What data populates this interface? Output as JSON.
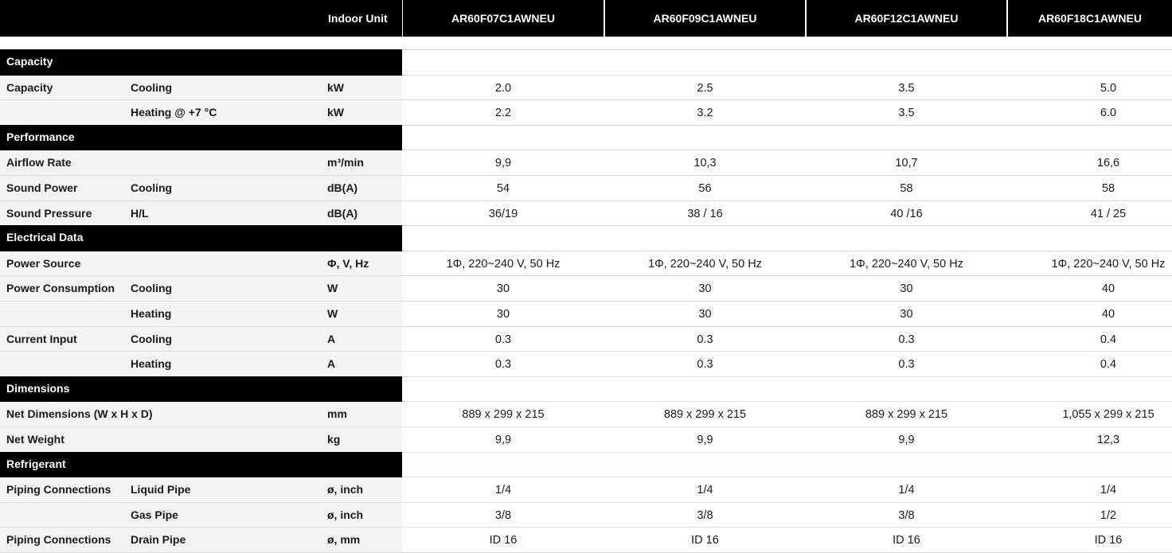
{
  "header": {
    "label": "Indoor Unit",
    "models": [
      "AR60F07C1AWNEU",
      "AR60F09C1AWNEU",
      "AR60F12C1AWNEU",
      "AR60F18C1AWNEU"
    ]
  },
  "rows": [
    {
      "type": "section",
      "title": "Capacity"
    },
    {
      "type": "data",
      "c1": "Capacity",
      "c2": "Cooling",
      "unit": "kW",
      "values": [
        "2.0",
        "2.5",
        "3.5",
        "5.0"
      ]
    },
    {
      "type": "data",
      "c1": "",
      "c2": "Heating @ +7 °C",
      "unit": "kW",
      "values": [
        "2.2",
        "3.2",
        "3.5",
        "6.0"
      ]
    },
    {
      "type": "section",
      "title": "Performance"
    },
    {
      "type": "data",
      "c1": "Airflow Rate",
      "c2": "",
      "unit": "m³/min",
      "values": [
        "9,9",
        "10,3",
        "10,7",
        "16,6"
      ]
    },
    {
      "type": "data",
      "c1": "Sound Power",
      "c2": "Cooling",
      "unit": "dB(A)",
      "values": [
        "54",
        "56",
        "58",
        "58"
      ]
    },
    {
      "type": "data",
      "c1": "Sound Pressure",
      "c2": "H/L",
      "unit": "dB(A)",
      "values": [
        "36/19",
        "38 / 16",
        "40 /16",
        "41 / 25"
      ]
    },
    {
      "type": "section",
      "title": "Electrical Data"
    },
    {
      "type": "data",
      "c1": "Power Source",
      "c2": "",
      "unit": "Φ, V, Hz",
      "values": [
        "1Φ, 220~240 V, 50 Hz",
        "1Φ, 220~240 V, 50 Hz",
        "1Φ, 220~240 V, 50 Hz",
        "1Φ, 220~240 V, 50 Hz"
      ]
    },
    {
      "type": "data",
      "c1": "Power Consumption",
      "c2": "Cooling",
      "unit": "W",
      "values": [
        "30",
        "30",
        "30",
        "40"
      ]
    },
    {
      "type": "data",
      "c1": "",
      "c2": "Heating",
      "unit": "W",
      "values": [
        "30",
        "30",
        "30",
        "40"
      ]
    },
    {
      "type": "data",
      "c1": "Current Input",
      "c2": "Cooling",
      "unit": "A",
      "values": [
        "0.3",
        "0.3",
        "0.3",
        "0.4"
      ]
    },
    {
      "type": "data",
      "c1": "",
      "c2": "Heating",
      "unit": "A",
      "values": [
        "0.3",
        "0.3",
        "0.3",
        "0.4"
      ]
    },
    {
      "type": "section",
      "title": "Dimensions"
    },
    {
      "type": "data",
      "c1": "Net Dimensions (W x H x D)",
      "c2": "",
      "unit": "mm",
      "values": [
        "889 x 299 x 215",
        "889 x 299 x 215",
        "889 x 299 x 215",
        "1,055 x 299 x 215"
      ]
    },
    {
      "type": "data",
      "c1": "Net Weight",
      "c2": "",
      "unit": "kg",
      "values": [
        "9,9",
        "9,9",
        "9,9",
        "12,3"
      ]
    },
    {
      "type": "section",
      "title": "Refrigerant"
    },
    {
      "type": "data",
      "c1": "Piping Connections",
      "c2": "Liquid Pipe",
      "unit": "ø, inch",
      "values": [
        "1/4",
        "1/4",
        "1/4",
        "1/4"
      ]
    },
    {
      "type": "data",
      "c1": "",
      "c2": "Gas Pipe",
      "unit": "ø, inch",
      "values": [
        "3/8",
        "3/8",
        "3/8",
        "1/2"
      ]
    },
    {
      "type": "data",
      "c1": "Piping Connections",
      "c2": "Drain Pipe",
      "unit": "ø, mm",
      "values": [
        "ID 16",
        "ID 16",
        "ID 16",
        "ID 16"
      ]
    }
  ]
}
